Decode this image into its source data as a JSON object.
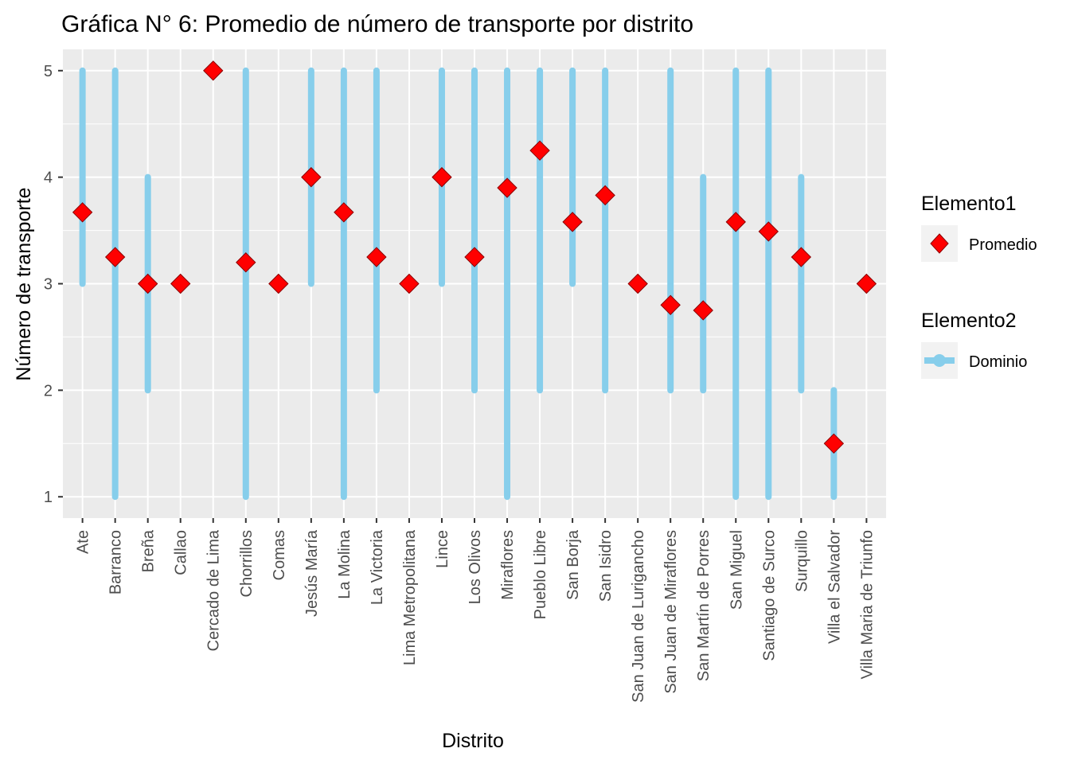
{
  "chart_data": {
    "type": "scatter",
    "title": "Gráfica N° 6: Promedio de número de transporte por distrito",
    "xlabel": "Distrito",
    "ylabel": "Número de transporte",
    "ylim": [
      0.8,
      5.2
    ],
    "yticks": [
      1,
      2,
      3,
      4,
      5
    ],
    "grid": true,
    "legend_position": "right",
    "categories": [
      "Ate",
      "Barranco",
      "Breña",
      "Callao",
      "Cercado de Lima",
      "Chorrillos",
      "Comas",
      "Jesús María",
      "La Molina",
      "La Victoria",
      "Lima Metropolitana",
      "Lince",
      "Los Olivos",
      "Miraflores",
      "Pueblo Libre",
      "San Borja",
      "San Isidro",
      "San Juan de Lurigancho",
      "San Juan de Miraflores",
      "San Martín de Porres",
      "San Miguel",
      "Santiago de Surco",
      "Surquillo",
      "Villa el Salvador",
      "Villa Maria de Triunfo"
    ],
    "series": [
      {
        "name": "Promedio",
        "kind": "point",
        "marker": "diamond",
        "color": "#FF0000",
        "values": [
          3.67,
          3.25,
          3.0,
          3.0,
          5.0,
          3.2,
          3.0,
          4.0,
          3.67,
          3.25,
          3.0,
          4.0,
          3.25,
          3.9,
          4.25,
          3.58,
          3.83,
          3.0,
          2.8,
          2.75,
          3.58,
          3.49,
          3.25,
          1.5,
          3.0
        ]
      },
      {
        "name": "Dominio",
        "kind": "range",
        "color": "#87CEEB",
        "min": [
          3,
          1,
          2,
          3,
          5,
          1,
          3,
          3,
          1,
          2,
          3,
          3,
          2,
          1,
          2,
          3,
          2,
          3,
          2,
          2,
          1,
          1,
          2,
          1,
          3
        ],
        "max": [
          5,
          5,
          4,
          3,
          5,
          5,
          3,
          5,
          5,
          5,
          3,
          5,
          5,
          5,
          5,
          5,
          5,
          3,
          5,
          4,
          5,
          5,
          4,
          2,
          3
        ]
      }
    ],
    "legends": [
      {
        "title": "Elemento1",
        "label": "Promedio"
      },
      {
        "title": "Elemento2",
        "label": "Dominio"
      }
    ],
    "colors": {
      "panel_background": "#EBEBEB",
      "grid": "#FFFFFF",
      "range": "#87CEEB",
      "point": "#FF0000",
      "text": "#000000",
      "tick_text": "#4D4D4D"
    }
  }
}
